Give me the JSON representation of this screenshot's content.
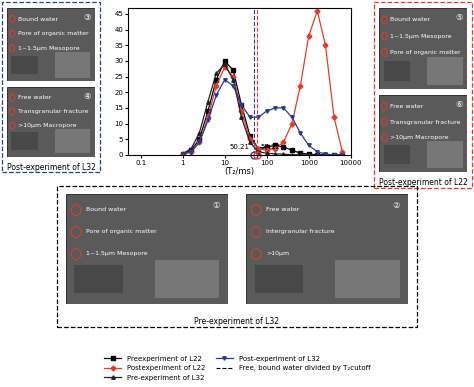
{
  "chart_data": {
    "type": "line",
    "x_label": "(T₂/ms)",
    "x": [
      1,
      1.6,
      2.5,
      4,
      6.3,
      10,
      16,
      25,
      40,
      63,
      100,
      160,
      250,
      400,
      630,
      1000,
      1600,
      2500,
      4000,
      6300
    ],
    "series": [
      {
        "name": "Preexperiment of L22",
        "color": "#000000",
        "marker": "square",
        "line_style": "solid",
        "values": [
          0.3,
          1.5,
          5,
          14,
          24,
          30,
          27,
          16,
          6,
          2,
          2.5,
          3,
          2.5,
          1.5,
          0.5,
          0.2,
          0,
          0,
          0,
          0
        ]
      },
      {
        "name": "Postexperiment of L22",
        "color": "#e8392d",
        "marker": "diamond",
        "line_style": "solid",
        "values": [
          0.2,
          1,
          4,
          12,
          22,
          28,
          25,
          14,
          5,
          2,
          1.5,
          2,
          4,
          10,
          22,
          38,
          46,
          35,
          12,
          1
        ]
      },
      {
        "name": "Pre-experiment of L32",
        "color": "#222222",
        "marker": "triangle_up",
        "line_style": "solid",
        "values": [
          0.3,
          2,
          7,
          17,
          26,
          29,
          24,
          12,
          4,
          1,
          0.5,
          0.3,
          0.2,
          0,
          0,
          0,
          0,
          0,
          0,
          0
        ]
      },
      {
        "name": "Post-experiment of L32",
        "color": "#2a3a9a",
        "marker": "triangle_down",
        "line_style": "solid",
        "values": [
          0.2,
          1,
          4,
          11,
          19,
          24,
          22,
          16,
          12,
          12,
          14,
          15,
          15,
          12,
          7,
          3,
          1,
          0.2,
          0,
          0
        ]
      }
    ],
    "threshold": {
      "name": "Free, bound water divided by T₂cutoff",
      "color": "#000000",
      "line_style": "dashed",
      "values": [
        50.21,
        57.22
      ],
      "colors": [
        "#2a3a9a",
        "#e8392d"
      ]
    },
    "log": "x",
    "xlim": [
      0.05,
      10000
    ],
    "xticks": [
      0.1,
      1,
      10,
      100,
      1000,
      10000
    ],
    "ylim": [
      0,
      47
    ],
    "yticks": [
      0,
      5,
      10,
      15,
      20,
      25,
      30,
      35,
      40,
      45
    ],
    "legend": "lower center"
  },
  "panels": [
    {
      "caption": "Post-experiment of L32",
      "color": "#2a3a9a",
      "images": [
        {
          "number": "③",
          "labels": [
            "Bound water",
            "Pore of organic matter",
            "1~1.5μm Mesopore"
          ]
        },
        {
          "number": "④",
          "labels": [
            "Free water",
            "Transgranular fracture",
            ">10μm Macropore"
          ]
        }
      ]
    },
    {
      "caption": "Post-experiment of L22",
      "color": "#e8392d",
      "images": [
        {
          "number": "⑤",
          "labels": [
            "Bound water",
            "1~1.5μm Mesopore",
            "Pore of organic matter"
          ]
        },
        {
          "number": "⑥",
          "labels": [
            "Free water",
            "Transgranular fracture",
            ">10μm Macropore"
          ]
        }
      ]
    },
    {
      "caption": "Pre-experiment of L32",
      "color": "#000000",
      "images": [
        {
          "number": "①",
          "labels": [
            "Bound water",
            "Pore of organic matter",
            "1~1.5μm Mesopore"
          ]
        },
        {
          "number": "②",
          "labels": [
            "Free water",
            "Intergranular fracture",
            ">10μm"
          ]
        }
      ]
    }
  ]
}
